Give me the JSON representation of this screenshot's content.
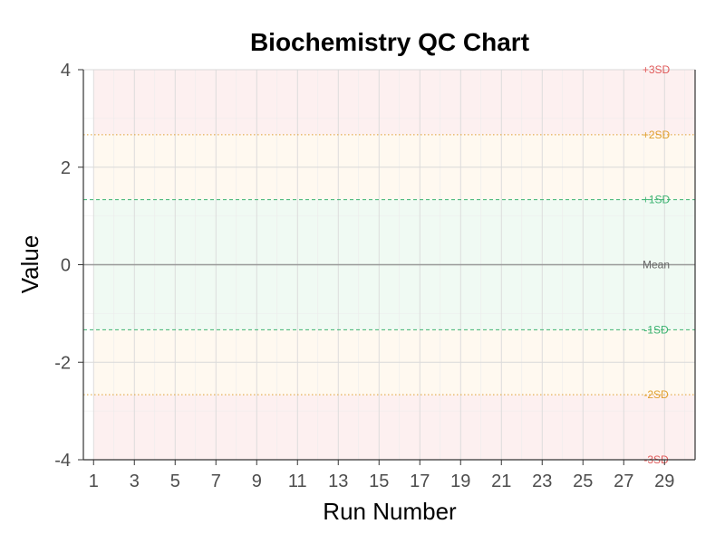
{
  "chart_data": {
    "type": "line",
    "title": "Biochemistry QC Chart",
    "xlabel": "Run Number",
    "ylabel": "Value",
    "xlim": [
      0.5,
      30.5
    ],
    "ylim": [
      -4,
      4
    ],
    "x_ticks": [
      1,
      3,
      5,
      7,
      9,
      11,
      13,
      15,
      17,
      19,
      21,
      23,
      25,
      27,
      29
    ],
    "y_ticks": [
      -4,
      -2,
      0,
      2,
      4
    ],
    "y_tick_labels": [
      "-4",
      "-2",
      "0",
      "2",
      "4"
    ],
    "grid": true,
    "series": [],
    "mean": 0,
    "sd": 1.333,
    "control_lines": [
      {
        "label": "+3SD",
        "value": 4.0,
        "color": "#e05a5a",
        "style": "none"
      },
      {
        "label": "+2SD",
        "value": 2.667,
        "color": "#e0a030",
        "style": "dotted"
      },
      {
        "label": "+1SD",
        "value": 1.333,
        "color": "#3cb371",
        "style": "dashed"
      },
      {
        "label": "Mean",
        "value": 0,
        "color": "#888888",
        "style": "solid"
      },
      {
        "label": "-1SD",
        "value": -1.333,
        "color": "#3cb371",
        "style": "dashed"
      },
      {
        "label": "-2SD",
        "value": -2.667,
        "color": "#e0a030",
        "style": "dotted"
      },
      {
        "label": "-3SD",
        "value": -4.0,
        "color": "#e05a5a",
        "style": "none"
      }
    ],
    "bands": [
      {
        "from": -4.0,
        "to": -2.667,
        "color": "#fdeeee"
      },
      {
        "from": -2.667,
        "to": -1.333,
        "color": "#fff8ee"
      },
      {
        "from": -1.333,
        "to": 1.333,
        "color": "#eef9f2"
      },
      {
        "from": 1.333,
        "to": 2.667,
        "color": "#fff8ee"
      },
      {
        "from": 2.667,
        "to": 4.0,
        "color": "#fdeeee"
      }
    ],
    "colors": {
      "panel_bg": "#ffffff",
      "grid_major": "#d9d9d9",
      "grid_minor": "#ececec",
      "axis": "#333333",
      "mean_line": "#999999",
      "mean_label": "#666666"
    }
  }
}
